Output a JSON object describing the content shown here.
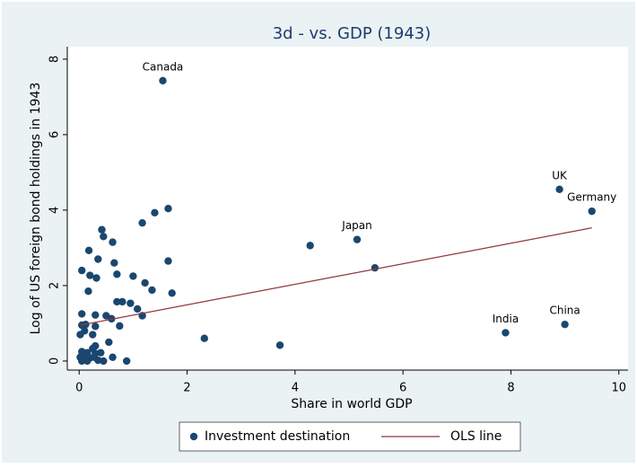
{
  "chart_data": {
    "type": "scatter",
    "title": "3d - vs. GDP (1943)",
    "x_label": "Share in world GDP",
    "y_label": "Log of US foreign bond holdings in 1943",
    "xlim": [
      -0.22,
      10.17
    ],
    "ylim": [
      -0.24,
      8.33
    ],
    "xticks": [
      0,
      2,
      4,
      6,
      8,
      10
    ],
    "yticks": [
      0,
      2,
      4,
      6,
      8
    ],
    "grid": false,
    "legend": "bottom",
    "series": [
      {
        "name": "Investment destination",
        "type": "scatter",
        "color": "#1a476f",
        "x": [
          1.55,
          8.9,
          9.5,
          5.15,
          7.9,
          9.0,
          4.28,
          5.48,
          3.72,
          2.32,
          1.65,
          1.4,
          1.17,
          0.42,
          0.45,
          0.62,
          0.18,
          0.35,
          0.05,
          0.2,
          0.32,
          0.65,
          1.65,
          0.7,
          1.0,
          1.22,
          1.35,
          1.72,
          0.17,
          0.7,
          0.8,
          0.95,
          1.08,
          1.17,
          0.5,
          0.6,
          0.3,
          0.05,
          0.05,
          0.12,
          0.3,
          0.75,
          0.02,
          0.1,
          0.25,
          0.55,
          0.3,
          0.25,
          0.05,
          0.15,
          0.4,
          0.02,
          0.1,
          0.2,
          0.28,
          0.35,
          0.45,
          0.05,
          0.15,
          0.62,
          0.88,
          0.3,
          0.12
        ],
        "values": [
          7.43,
          4.55,
          3.97,
          3.22,
          0.75,
          0.97,
          3.06,
          2.47,
          0.42,
          0.6,
          4.04,
          3.93,
          3.66,
          3.48,
          3.3,
          3.15,
          2.93,
          2.7,
          2.4,
          2.27,
          2.2,
          2.6,
          2.65,
          2.3,
          2.25,
          2.07,
          1.88,
          1.8,
          1.85,
          1.57,
          1.57,
          1.53,
          1.38,
          1.2,
          1.2,
          1.12,
          1.22,
          1.25,
          0.95,
          0.97,
          0.92,
          0.93,
          0.7,
          0.8,
          0.7,
          0.5,
          0.4,
          0.33,
          0.25,
          0.22,
          0.22,
          0.1,
          0.05,
          0.08,
          0.1,
          0.02,
          0.0,
          0.0,
          0.0,
          0.1,
          0.0,
          0.2,
          0.15
        ],
        "point_labels": [
          "Canada",
          "UK",
          "Germany",
          "Japan",
          "India",
          "China",
          null,
          null,
          null,
          null,
          null,
          null,
          null,
          null,
          null,
          null,
          null,
          null,
          null,
          null,
          null,
          null,
          null,
          null,
          null,
          null,
          null,
          null,
          null,
          null,
          null,
          null,
          null,
          null,
          null,
          null,
          null,
          null,
          null,
          null,
          null,
          null,
          null,
          null,
          null,
          null,
          null,
          null,
          null,
          null,
          null,
          null,
          null,
          null,
          null,
          null,
          null,
          null,
          null,
          null,
          null,
          null,
          null
        ]
      },
      {
        "name": "OLS line",
        "type": "line",
        "color": "#90353b",
        "x": [
          0.02,
          9.5
        ],
        "values": [
          0.95,
          3.53
        ]
      }
    ]
  }
}
